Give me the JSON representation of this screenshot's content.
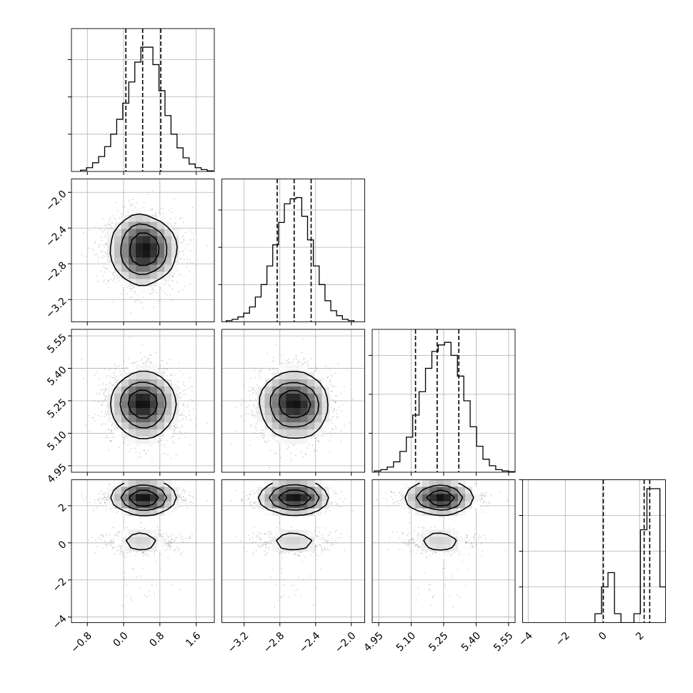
{
  "chart_data": {
    "type": "corner",
    "grid": true,
    "params": [
      {
        "range": [
          -1.15,
          2.0
        ],
        "ticks": [
          -0.8,
          0.0,
          0.8,
          1.6
        ],
        "tick_labels": [
          "−0.8",
          "0.0",
          "0.8",
          "1.6"
        ],
        "quantiles": [
          0.05,
          0.42,
          0.82
        ],
        "hist_start": -0.95,
        "hist_step": 0.133,
        "hist_counts": [
          0.01,
          0.03,
          0.07,
          0.12,
          0.2,
          0.3,
          0.42,
          0.55,
          0.72,
          0.88,
          1.0,
          1.0,
          0.86,
          0.65,
          0.45,
          0.3,
          0.19,
          0.11,
          0.06,
          0.03,
          0.015,
          0.005
        ],
        "hist_max": 1.15
      },
      {
        "range": [
          -3.45,
          -1.85
        ],
        "ticks": [
          -3.2,
          -2.8,
          -2.4,
          -2.0
        ],
        "tick_labels": [
          "−3.2",
          "−2.8",
          "−2.4",
          "−2.0"
        ],
        "quantiles": [
          -2.83,
          -2.64,
          -2.45
        ],
        "hist_start": -3.4,
        "hist_step": 0.065,
        "hist_counts": [
          0.01,
          0.02,
          0.04,
          0.07,
          0.12,
          0.2,
          0.3,
          0.45,
          0.62,
          0.8,
          0.95,
          0.99,
          1.0,
          0.85,
          0.66,
          0.45,
          0.3,
          0.17,
          0.09,
          0.05,
          0.02,
          0.01
        ],
        "hist_max": 1.15
      },
      {
        "range": [
          4.92,
          5.58
        ],
        "ticks": [
          4.95,
          5.1,
          5.25,
          5.4,
          5.55
        ],
        "tick_labels": [
          "4.95",
          "5.10",
          "5.25",
          "5.40",
          "5.55"
        ],
        "quantiles": [
          5.12,
          5.22,
          5.32
        ],
        "hist_start": 4.93,
        "hist_step": 0.0295,
        "hist_counts": [
          0.01,
          0.02,
          0.04,
          0.08,
          0.16,
          0.27,
          0.44,
          0.62,
          0.8,
          0.93,
          0.98,
          1.0,
          0.9,
          0.74,
          0.55,
          0.35,
          0.2,
          0.1,
          0.05,
          0.02,
          0.01,
          0.005
        ],
        "hist_max": 1.1
      },
      {
        "range": [
          -4.3,
          3.4
        ],
        "ticks": [
          -4,
          -2,
          0,
          2
        ],
        "tick_labels": [
          "−4",
          "−2",
          "0",
          "2"
        ],
        "quantiles": [
          0.05,
          2.25,
          2.55
        ],
        "hist_start": -0.4,
        "hist_step": 0.35,
        "hist_counts": [
          0.05,
          0.2,
          0.28,
          0.05,
          0,
          0,
          0.05,
          0.52,
          0.75,
          0.75,
          0.2
        ],
        "hist_max": 0.8
      }
    ],
    "marginal_y_ticks": [
      [
        0.3,
        0.6,
        0.9
      ],
      [
        0.3,
        0.6,
        0.9
      ],
      [
        0.3,
        0.6,
        0.9
      ],
      [
        0.2,
        0.4,
        0.6,
        0.8
      ]
    ],
    "joint_y_axes": [
      null,
      {
        "ticks": [
          -3.2,
          -2.8,
          -2.4,
          -2.0
        ],
        "tick_labels": [
          "−3.2",
          "−2.8",
          "−2.4",
          "−2.0"
        ]
      },
      {
        "ticks": [
          4.95,
          5.1,
          5.25,
          5.4,
          5.55
        ],
        "tick_labels": [
          "4.95",
          "5.10",
          "5.25",
          "5.40",
          "5.55"
        ]
      },
      {
        "ticks": [
          -4,
          -2,
          0,
          2
        ],
        "tick_labels": [
          "−4",
          "−2",
          "0",
          "2"
        ]
      }
    ],
    "joint_centers": {
      "p0": {
        "mean": 0.42,
        "sd": 0.38
      },
      "p1": {
        "mean": -2.64,
        "sd": 0.2
      },
      "p2": {
        "mean": 5.23,
        "sd": 0.08
      },
      "p3_modes": [
        {
          "mean": 2.4,
          "sd": 0.25,
          "weight": 0.75
        },
        {
          "mean": 0.05,
          "sd": 0.3,
          "weight": 0.25
        }
      ]
    },
    "colors": {
      "ink": "#000000",
      "grid": "#b0b0b0",
      "scatter": "#8a8a8a"
    }
  }
}
